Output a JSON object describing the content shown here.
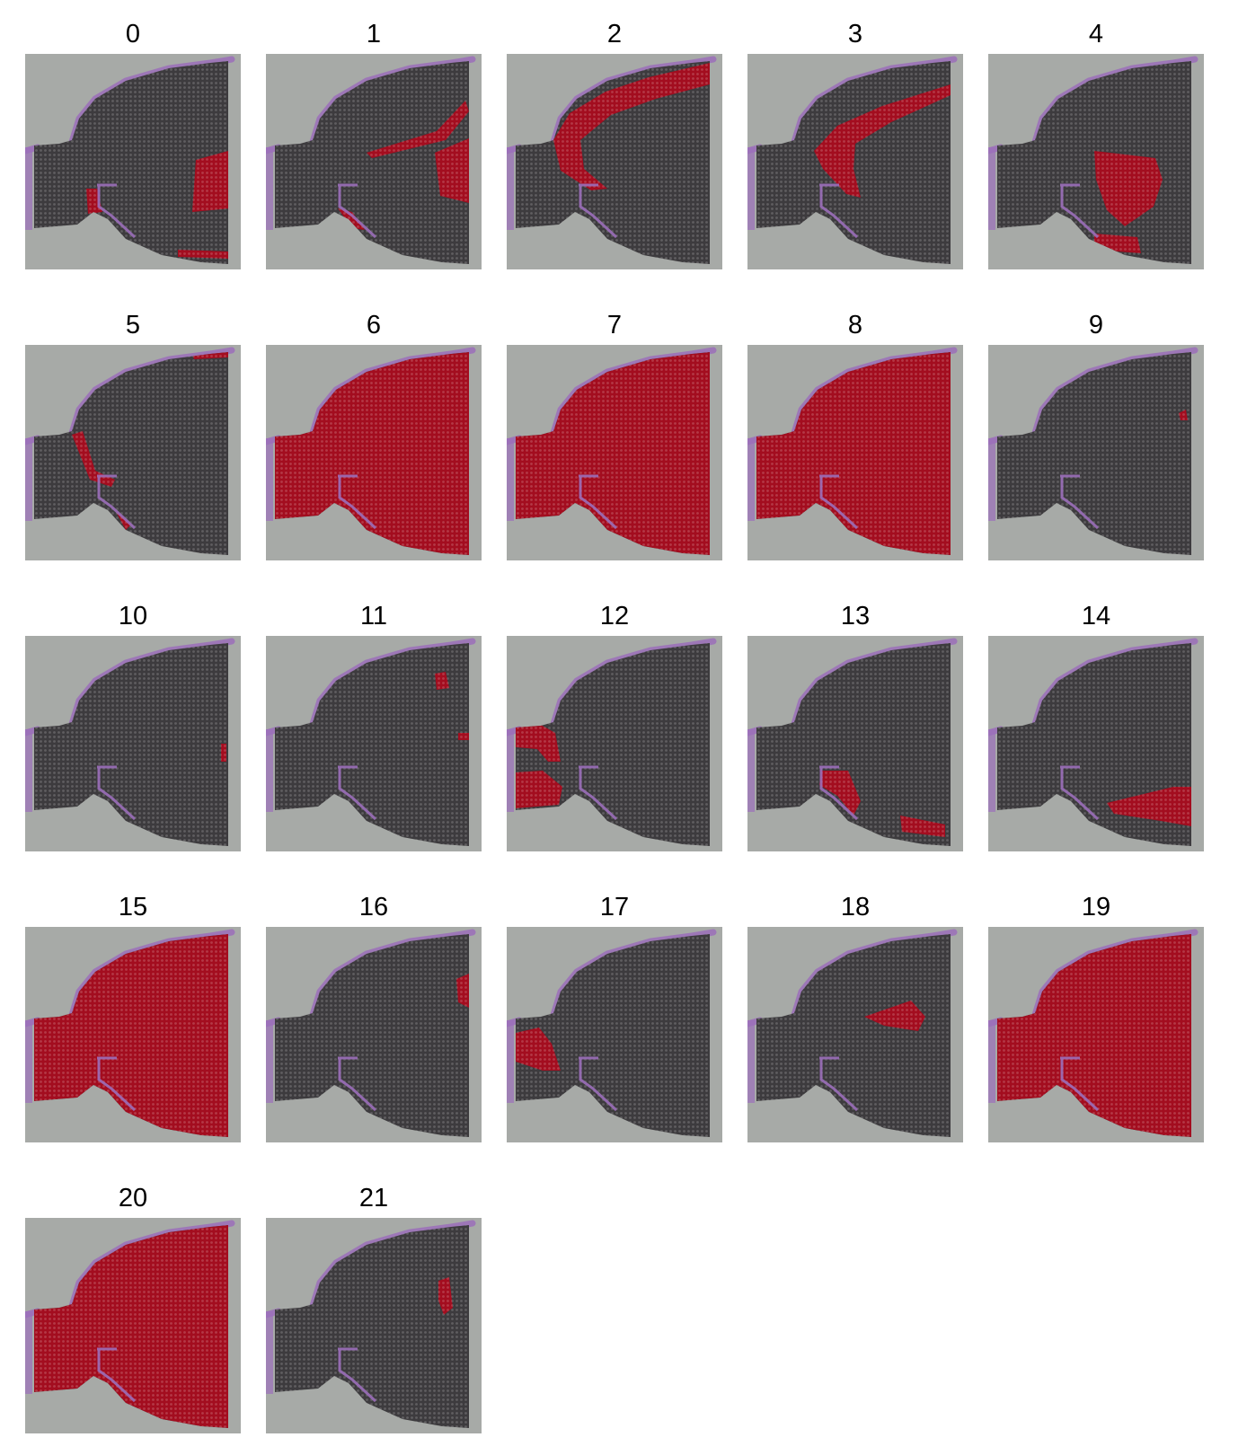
{
  "colors": {
    "background_tissue": "#a7aaa7",
    "spot_gray": "#3d3b3e",
    "spot_highlight": "#a30d1f",
    "tissue_edge_purple": "#9b6fba"
  },
  "panels": [
    {
      "label": "0",
      "highlight": "cluster-0"
    },
    {
      "label": "1",
      "highlight": "cluster-1"
    },
    {
      "label": "2",
      "highlight": "cluster-2"
    },
    {
      "label": "3",
      "highlight": "cluster-3"
    },
    {
      "label": "4",
      "highlight": "cluster-4"
    },
    {
      "label": "5",
      "highlight": "cluster-5"
    },
    {
      "label": "6",
      "highlight": "cluster-6"
    },
    {
      "label": "7",
      "highlight": "cluster-7"
    },
    {
      "label": "8",
      "highlight": "cluster-8"
    },
    {
      "label": "9",
      "highlight": "cluster-9"
    },
    {
      "label": "10",
      "highlight": "cluster-10"
    },
    {
      "label": "11",
      "highlight": "cluster-11"
    },
    {
      "label": "12",
      "highlight": "cluster-12"
    },
    {
      "label": "13",
      "highlight": "cluster-13"
    },
    {
      "label": "14",
      "highlight": "cluster-14"
    },
    {
      "label": "15",
      "highlight": "cluster-15"
    },
    {
      "label": "16",
      "highlight": "cluster-16"
    },
    {
      "label": "17",
      "highlight": "cluster-17"
    },
    {
      "label": "18",
      "highlight": "cluster-18"
    },
    {
      "label": "19",
      "highlight": "cluster-19"
    },
    {
      "label": "20",
      "highlight": "cluster-20"
    },
    {
      "label": "21",
      "highlight": "cluster-21"
    }
  ]
}
